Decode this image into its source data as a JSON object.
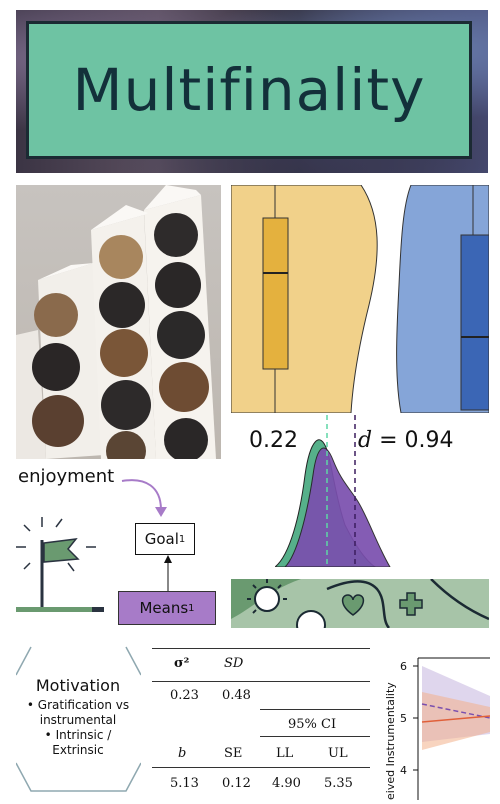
{
  "title": "Multifinality",
  "stats": {
    "left_value": "0.22",
    "right_label": "d",
    "right_value": "= 0.94"
  },
  "diagram": {
    "enjoyment_label": "enjoyment",
    "goal_label": "Goal",
    "goal_subscript": "1",
    "means_label": "Means",
    "means_subscript": "1"
  },
  "motivation": {
    "title": "Motivation",
    "bullets": [
      "• Gratification vs instrumental",
      "• Intrinsic / Extrinsic"
    ]
  },
  "table": {
    "row1_headers": [
      "σ²",
      "SD"
    ],
    "row1_values": [
      "0.23",
      "0.48"
    ],
    "ci_header": "95% CI",
    "row2_headers": [
      "b",
      "SE",
      "LL",
      "UL"
    ],
    "row2_values": [
      "5.13",
      "0.12",
      "4.90",
      "5.35"
    ]
  },
  "right_plot": {
    "ylabel": "eived Instrumentality",
    "ticks": [
      "6",
      "5",
      "4"
    ]
  },
  "colors": {
    "title_bg": "#6ec3a3",
    "violin_yellow": "#f1d18a",
    "violin_blue": "#85a5d8",
    "green_accent": "#56b08a",
    "purple_accent": "#a77bc8"
  }
}
